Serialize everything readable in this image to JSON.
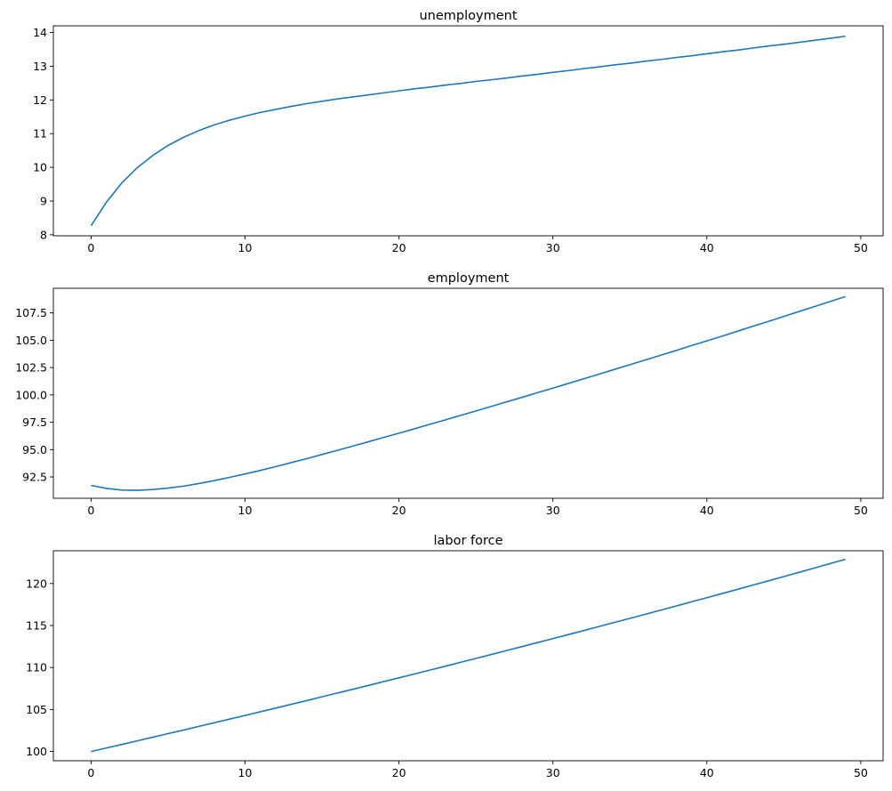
{
  "chart_data": [
    {
      "type": "line",
      "title": "unemployment",
      "xlim": [
        -2.45,
        51.45
      ],
      "ylim": [
        7.97,
        14.2
      ],
      "xticks": [
        0,
        10,
        20,
        30,
        40,
        50
      ],
      "yticks": [
        8,
        9,
        10,
        11,
        12,
        13,
        14
      ],
      "ytick_labels": [
        "8",
        "9",
        "10",
        "11",
        "12",
        "13",
        "14"
      ],
      "color": "#1f77b4",
      "grid": false,
      "values": [
        8.27,
        8.97,
        9.54,
        9.99,
        10.35,
        10.65,
        10.89,
        11.09,
        11.26,
        11.4,
        11.52,
        11.63,
        11.72,
        11.81,
        11.89,
        11.96,
        12.03,
        12.09,
        12.15,
        12.21,
        12.27,
        12.33,
        12.38,
        12.44,
        12.49,
        12.55,
        12.6,
        12.65,
        12.71,
        12.76,
        12.82,
        12.87,
        12.93,
        12.98,
        13.04,
        13.09,
        13.15,
        13.2,
        13.26,
        13.31,
        13.37,
        13.43,
        13.48,
        13.54,
        13.6,
        13.65,
        13.71,
        13.77,
        13.83,
        13.89
      ]
    },
    {
      "type": "line",
      "title": "employment",
      "xlim": [
        -2.45,
        51.45
      ],
      "ylim": [
        90.55,
        109.75
      ],
      "xticks": [
        0,
        10,
        20,
        30,
        40,
        50
      ],
      "yticks": [
        92.5,
        95,
        97.5,
        100,
        102.5,
        105,
        107.5
      ],
      "ytick_labels": [
        "92.5",
        "95.0",
        "97.5",
        "100.0",
        "102.5",
        "105.0",
        "107.5"
      ],
      "color": "#1f77b4",
      "grid": false,
      "values": [
        91.73,
        91.45,
        91.3,
        91.28,
        91.35,
        91.48,
        91.66,
        91.9,
        92.16,
        92.46,
        92.77,
        93.1,
        93.45,
        93.81,
        94.17,
        94.55,
        94.93,
        95.32,
        95.71,
        96.11,
        96.5,
        96.9,
        97.31,
        97.71,
        98.13,
        98.53,
        98.95,
        99.37,
        99.78,
        100.21,
        100.62,
        101.05,
        101.47,
        101.9,
        102.33,
        102.76,
        103.19,
        103.63,
        104.06,
        104.51,
        104.94,
        105.38,
        105.83,
        106.28,
        106.72,
        107.18,
        107.63,
        108.08,
        108.54,
        108.99
      ]
    },
    {
      "type": "line",
      "title": "labor force",
      "xlim": [
        -2.45,
        51.45
      ],
      "ylim": [
        98.9,
        123.9
      ],
      "xticks": [
        0,
        10,
        20,
        30,
        40,
        50
      ],
      "yticks": [
        100,
        105,
        110,
        115,
        120
      ],
      "ytick_labels": [
        "100",
        "105",
        "110",
        "115",
        "120"
      ],
      "color": "#1f77b4",
      "grid": false,
      "values": [
        100.0,
        100.42,
        100.84,
        101.27,
        101.7,
        102.13,
        102.55,
        102.99,
        103.42,
        103.86,
        104.29,
        104.73,
        105.17,
        105.62,
        106.06,
        106.51,
        106.96,
        107.41,
        107.86,
        108.32,
        108.77,
        109.23,
        109.69,
        110.15,
        110.62,
        111.08,
        111.55,
        112.02,
        112.49,
        112.97,
        113.44,
        113.92,
        114.4,
        114.88,
        115.37,
        115.85,
        116.34,
        116.83,
        117.32,
        117.82,
        118.31,
        118.81,
        119.31,
        119.82,
        120.32,
        120.83,
        121.34,
        121.85,
        122.37,
        122.88
      ]
    }
  ]
}
